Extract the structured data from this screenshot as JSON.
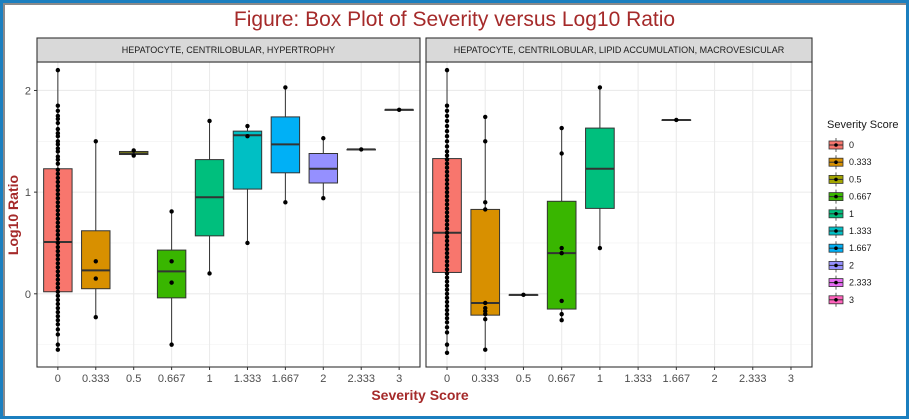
{
  "figure_title": "Figure: Box Plot of Severity versus Log10 Ratio",
  "chart_data": {
    "type": "box",
    "title": "Figure: Box Plot of Severity versus Log10 Ratio",
    "xlabel": "Severity Score",
    "ylabel": "Log10 Ratio",
    "ylim": [
      -0.72,
      2.28
    ],
    "yticks": [
      0,
      1,
      2
    ],
    "ytick_labels": [
      "0",
      "1",
      "2"
    ],
    "categories": [
      "0",
      "0.333",
      "0.5",
      "0.667",
      "1",
      "1.333",
      "1.667",
      "2",
      "2.333",
      "3"
    ],
    "grid": true,
    "legend": {
      "title": "Severity Score",
      "position": "right",
      "entries": [
        {
          "label": "0",
          "color": "#F8766D"
        },
        {
          "label": "0.333",
          "color": "#D89000"
        },
        {
          "label": "0.5",
          "color": "#A3A500"
        },
        {
          "label": "0.667",
          "color": "#39B600"
        },
        {
          "label": "1",
          "color": "#00BF7D"
        },
        {
          "label": "1.333",
          "color": "#00BFC4"
        },
        {
          "label": "1.667",
          "color": "#00B0F6"
        },
        {
          "label": "2",
          "color": "#9590FF"
        },
        {
          "label": "2.333",
          "color": "#E76BF3"
        },
        {
          "label": "3",
          "color": "#FF62BC"
        }
      ]
    },
    "panels": [
      {
        "strip": "HEPATOCYTE, CENTRILOBULAR, HYPERTROPHY",
        "boxes": [
          {
            "category": "0",
            "min": -0.55,
            "q1": 0.02,
            "median": 0.51,
            "q3": 1.23,
            "max": 2.2,
            "points": [
              2.2,
              1.85,
              1.8,
              1.75,
              1.72,
              1.68,
              1.62,
              1.58,
              1.55,
              1.5,
              1.47,
              1.43,
              1.4,
              1.35,
              1.32,
              1.28,
              1.22,
              1.18,
              1.14,
              1.1,
              1.06,
              1.02,
              0.98,
              0.94,
              0.9,
              0.86,
              0.82,
              0.78,
              0.74,
              0.7,
              0.66,
              0.62,
              0.58,
              0.54,
              0.5,
              0.46,
              0.42,
              0.38,
              0.34,
              0.3,
              0.26,
              0.22,
              0.18,
              0.14,
              0.1,
              0.06,
              0.02,
              -0.02,
              -0.06,
              -0.1,
              -0.14,
              -0.18,
              -0.22,
              -0.26,
              -0.3,
              -0.35,
              -0.4,
              -0.5,
              -0.55
            ]
          },
          {
            "category": "0.333",
            "min": -0.23,
            "q1": 0.05,
            "median": 0.23,
            "q3": 0.62,
            "max": 1.5,
            "points": [
              1.5,
              0.32,
              0.15,
              -0.23
            ]
          },
          {
            "category": "0.5",
            "min": 1.36,
            "q1": 1.37,
            "median": 1.38,
            "q3": 1.4,
            "max": 1.41,
            "points": [
              1.41,
              1.36
            ]
          },
          {
            "category": "0.667",
            "min": -0.5,
            "q1": -0.04,
            "median": 0.22,
            "q3": 0.43,
            "max": 0.81,
            "points": [
              0.81,
              0.32,
              0.11,
              -0.5
            ]
          },
          {
            "category": "1",
            "min": 0.2,
            "q1": 0.57,
            "median": 0.95,
            "q3": 1.32,
            "max": 1.7,
            "points": [
              1.7,
              0.2
            ]
          },
          {
            "category": "1.333",
            "min": 0.5,
            "q1": 1.03,
            "median": 1.56,
            "q3": 1.6,
            "max": 1.65,
            "points": [
              1.65,
              1.55,
              0.5
            ]
          },
          {
            "category": "1.667",
            "min": 0.9,
            "q1": 1.19,
            "median": 1.47,
            "q3": 1.74,
            "max": 2.03,
            "points": [
              2.03,
              0.9
            ]
          },
          {
            "category": "2",
            "min": 0.94,
            "q1": 1.09,
            "median": 1.23,
            "q3": 1.38,
            "max": 1.53,
            "points": [
              1.53,
              0.94
            ]
          },
          {
            "category": "2.333",
            "min": 1.42,
            "q1": 1.42,
            "median": 1.42,
            "q3": 1.42,
            "max": 1.42,
            "points": [
              1.42
            ]
          },
          {
            "category": "3",
            "min": 1.81,
            "q1": 1.81,
            "median": 1.81,
            "q3": 1.81,
            "max": 1.81,
            "points": [
              1.81
            ]
          }
        ]
      },
      {
        "strip": "HEPATOCYTE, CENTRILOBULAR, LIPID ACCUMULATION, MACROVESICULAR",
        "boxes": [
          {
            "category": "0",
            "min": -0.58,
            "q1": 0.21,
            "median": 0.6,
            "q3": 1.33,
            "max": 2.2,
            "points": [
              2.2,
              1.85,
              1.8,
              1.75,
              1.7,
              1.65,
              1.6,
              1.55,
              1.5,
              1.45,
              1.4,
              1.36,
              1.32,
              1.28,
              1.24,
              1.2,
              1.16,
              1.12,
              1.08,
              1.04,
              1.0,
              0.96,
              0.92,
              0.88,
              0.84,
              0.8,
              0.76,
              0.72,
              0.68,
              0.64,
              0.6,
              0.56,
              0.52,
              0.48,
              0.44,
              0.4,
              0.36,
              0.32,
              0.28,
              0.24,
              0.2,
              0.16,
              0.12,
              0.08,
              0.04,
              0.0,
              -0.04,
              -0.08,
              -0.12,
              -0.16,
              -0.2,
              -0.24,
              -0.28,
              -0.33,
              -0.38,
              -0.5,
              -0.58
            ]
          },
          {
            "category": "0.333",
            "min": -0.55,
            "q1": -0.21,
            "median": -0.09,
            "q3": 0.83,
            "max": 1.74,
            "points": [
              1.74,
              1.5,
              0.9,
              0.83,
              -0.09,
              -0.14,
              -0.17,
              -0.2,
              -0.25,
              -0.55
            ]
          },
          {
            "category": "0.5",
            "min": -0.01,
            "q1": -0.01,
            "median": -0.01,
            "q3": -0.01,
            "max": -0.01,
            "points": [
              -0.01
            ]
          },
          {
            "category": "0.667",
            "min": -0.26,
            "q1": -0.15,
            "median": 0.4,
            "q3": 0.91,
            "max": 1.63,
            "points": [
              1.63,
              1.38,
              0.45,
              0.4,
              -0.07,
              -0.2,
              -0.26
            ]
          },
          {
            "category": "1",
            "min": 0.45,
            "q1": 0.84,
            "median": 1.23,
            "q3": 1.63,
            "max": 2.03,
            "points": [
              2.03,
              0.45
            ]
          },
          {
            "category": "1.333",
            "empty": true
          },
          {
            "category": "1.667",
            "min": 1.71,
            "q1": 1.71,
            "median": 1.71,
            "q3": 1.71,
            "max": 1.71,
            "points": [
              1.71
            ]
          },
          {
            "category": "2",
            "empty": true
          },
          {
            "category": "2.333",
            "empty": true
          },
          {
            "category": "3",
            "empty": true
          }
        ]
      }
    ]
  }
}
